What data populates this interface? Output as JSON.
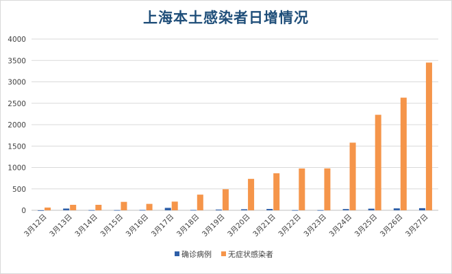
{
  "chart_data": {
    "type": "bar",
    "title": "上海本土感染者日增情况",
    "categories": [
      "3月12日",
      "3月13日",
      "3月14日",
      "3月15日",
      "3月16日",
      "3月17日",
      "3月18日",
      "3月19日",
      "3月20日",
      "3月21日",
      "3月22日",
      "3月23日",
      "3月24日",
      "3月25日",
      "3月26日",
      "3月27日"
    ],
    "series": [
      {
        "name": "确诊病例",
        "color": "#2e5fa8",
        "values": [
          1,
          41,
          5,
          5,
          8,
          57,
          8,
          17,
          24,
          31,
          4,
          4,
          29,
          38,
          45,
          50
        ]
      },
      {
        "name": "无症状感染者",
        "color": "#f5954a",
        "values": [
          64,
          128,
          128,
          197,
          150,
          203,
          366,
          492,
          734,
          865,
          977,
          979,
          1580,
          2231,
          2631,
          3450
        ]
      }
    ],
    "ylim": [
      0,
      4000
    ],
    "yticks": [
      0,
      500,
      1000,
      1500,
      2000,
      2500,
      3000,
      3500,
      4000
    ],
    "grid": true,
    "legend_position": "bottom"
  }
}
